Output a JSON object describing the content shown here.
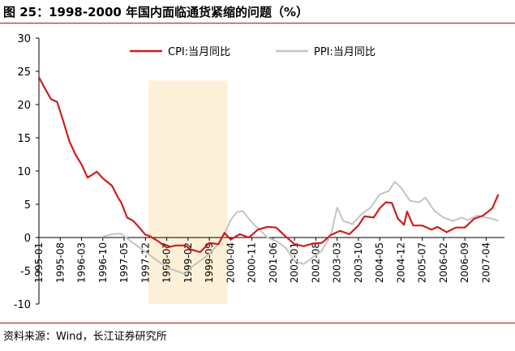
{
  "title": "图 25：1998-2000 年国内面临通货紧缩的问题（%）",
  "source": "资料来源：Wind，长江证券研究所",
  "colors": {
    "cpi": "#cc1f1f",
    "ppi": "#c4c4c4",
    "shade": "#fcf1d8",
    "rule": "#b3121b"
  },
  "chart_data": {
    "type": "line",
    "title": "1998-2000 年国内面临通货紧缩的问题（%）",
    "xlabel": "",
    "ylabel": "%",
    "ylim": [
      -10,
      30
    ],
    "yticks": [
      -10,
      -5,
      0,
      5,
      10,
      15,
      20,
      25,
      30
    ],
    "x_range": [
      "1995-01",
      "2007-10"
    ],
    "x_ticks": [
      "1995-01",
      "1995-08",
      "1996-03",
      "1996-10",
      "1997-05",
      "1997-12",
      "1998-07",
      "1999-02",
      "1999-09",
      "2000-04",
      "2000-11",
      "2001-06",
      "2002-01",
      "2002-08",
      "2003-03",
      "2003-10",
      "2004-05",
      "2004-12",
      "2005-07",
      "2006-02",
      "2006-09",
      "2007-04"
    ],
    "shaded_period": [
      "1998-01",
      "2000-03"
    ],
    "legend": "top",
    "series": [
      {
        "name": "CPI:当月同比",
        "points": [
          [
            "1995-01",
            24.1
          ],
          [
            "1995-03",
            22.4
          ],
          [
            "1995-05",
            20.8
          ],
          [
            "1995-07",
            20.4
          ],
          [
            "1995-09",
            17.5
          ],
          [
            "1995-11",
            14.5
          ],
          [
            "1996-01",
            12.5
          ],
          [
            "1996-03",
            11.0
          ],
          [
            "1996-05",
            9.0
          ],
          [
            "1996-08",
            9.9
          ],
          [
            "1996-10",
            8.9
          ],
          [
            "1997-01",
            7.8
          ],
          [
            "1997-03",
            6.0
          ],
          [
            "1997-04",
            5.3
          ],
          [
            "1997-06",
            3.0
          ],
          [
            "1997-08",
            2.5
          ],
          [
            "1997-10",
            1.5
          ],
          [
            "1997-12",
            0.4
          ],
          [
            "1998-01",
            0.3
          ],
          [
            "1998-04",
            -0.5
          ],
          [
            "1998-07",
            -1.5
          ],
          [
            "1998-10",
            -1.2
          ],
          [
            "1999-01",
            -1.2
          ],
          [
            "1999-03",
            -1.8
          ],
          [
            "1999-06",
            -2.2
          ],
          [
            "1999-09",
            -0.8
          ],
          [
            "1999-12",
            -1.0
          ],
          [
            "2000-02",
            0.7
          ],
          [
            "2000-04",
            -0.3
          ],
          [
            "2000-07",
            0.5
          ],
          [
            "2000-10",
            0.0
          ],
          [
            "2001-01",
            1.2
          ],
          [
            "2001-04",
            1.6
          ],
          [
            "2001-07",
            1.5
          ],
          [
            "2001-10",
            0.2
          ],
          [
            "2002-01",
            -1.0
          ],
          [
            "2002-04",
            -1.3
          ],
          [
            "2002-07",
            -0.9
          ],
          [
            "2002-10",
            -0.8
          ],
          [
            "2003-01",
            0.4
          ],
          [
            "2003-04",
            1.0
          ],
          [
            "2003-07",
            0.5
          ],
          [
            "2003-10",
            1.8
          ],
          [
            "2003-12",
            3.2
          ],
          [
            "2004-03",
            3.0
          ],
          [
            "2004-05",
            4.4
          ],
          [
            "2004-07",
            5.3
          ],
          [
            "2004-09",
            5.2
          ],
          [
            "2004-11",
            2.8
          ],
          [
            "2004-12",
            2.4
          ],
          [
            "2005-01",
            1.9
          ],
          [
            "2005-02",
            3.9
          ],
          [
            "2005-04",
            1.8
          ],
          [
            "2005-07",
            1.8
          ],
          [
            "2005-10",
            1.2
          ],
          [
            "2005-12",
            1.6
          ],
          [
            "2006-03",
            0.8
          ],
          [
            "2006-06",
            1.5
          ],
          [
            "2006-09",
            1.5
          ],
          [
            "2006-12",
            2.8
          ],
          [
            "2007-03",
            3.3
          ],
          [
            "2007-06",
            4.4
          ],
          [
            "2007-08",
            6.5
          ]
        ]
      },
      {
        "name": "PPI:当月同比",
        "points": [
          [
            "1996-10",
            0.1
          ],
          [
            "1997-01",
            0.5
          ],
          [
            "1997-04",
            0.6
          ],
          [
            "1997-07",
            -0.5
          ],
          [
            "1997-10",
            -1.5
          ],
          [
            "1998-01",
            -2.5
          ],
          [
            "1998-04",
            -3.5
          ],
          [
            "1998-07",
            -4.5
          ],
          [
            "1998-10",
            -5.0
          ],
          [
            "1999-01",
            -5.5
          ],
          [
            "1999-03",
            -4.5
          ],
          [
            "1999-06",
            -3.5
          ],
          [
            "1999-09",
            -2.5
          ],
          [
            "1999-12",
            -1.0
          ],
          [
            "2000-02",
            0.5
          ],
          [
            "2000-04",
            2.6
          ],
          [
            "2000-06",
            3.8
          ],
          [
            "2000-08",
            4.0
          ],
          [
            "2000-10",
            2.8
          ],
          [
            "2000-12",
            1.8
          ],
          [
            "2001-02",
            1.0
          ],
          [
            "2001-04",
            0.0
          ],
          [
            "2001-07",
            -0.5
          ],
          [
            "2001-10",
            -1.5
          ],
          [
            "2002-01",
            -3.5
          ],
          [
            "2002-04",
            -4.0
          ],
          [
            "2002-07",
            -3.0
          ],
          [
            "2002-10",
            -2.0
          ],
          [
            "2003-01",
            0.5
          ],
          [
            "2003-03",
            4.5
          ],
          [
            "2003-05",
            2.5
          ],
          [
            "2003-08",
            2.0
          ],
          [
            "2003-11",
            3.5
          ],
          [
            "2004-02",
            4.5
          ],
          [
            "2004-05",
            6.5
          ],
          [
            "2004-08",
            7.0
          ],
          [
            "2004-10",
            8.4
          ],
          [
            "2004-12",
            7.5
          ],
          [
            "2005-03",
            5.5
          ],
          [
            "2005-06",
            5.3
          ],
          [
            "2005-08",
            6.0
          ],
          [
            "2005-11",
            4.0
          ],
          [
            "2006-02",
            3.0
          ],
          [
            "2006-05",
            2.5
          ],
          [
            "2006-08",
            3.0
          ],
          [
            "2006-10",
            2.6
          ],
          [
            "2007-01",
            3.3
          ],
          [
            "2007-04",
            3.0
          ],
          [
            "2007-06",
            2.8
          ],
          [
            "2007-08",
            2.5
          ]
        ]
      }
    ]
  }
}
